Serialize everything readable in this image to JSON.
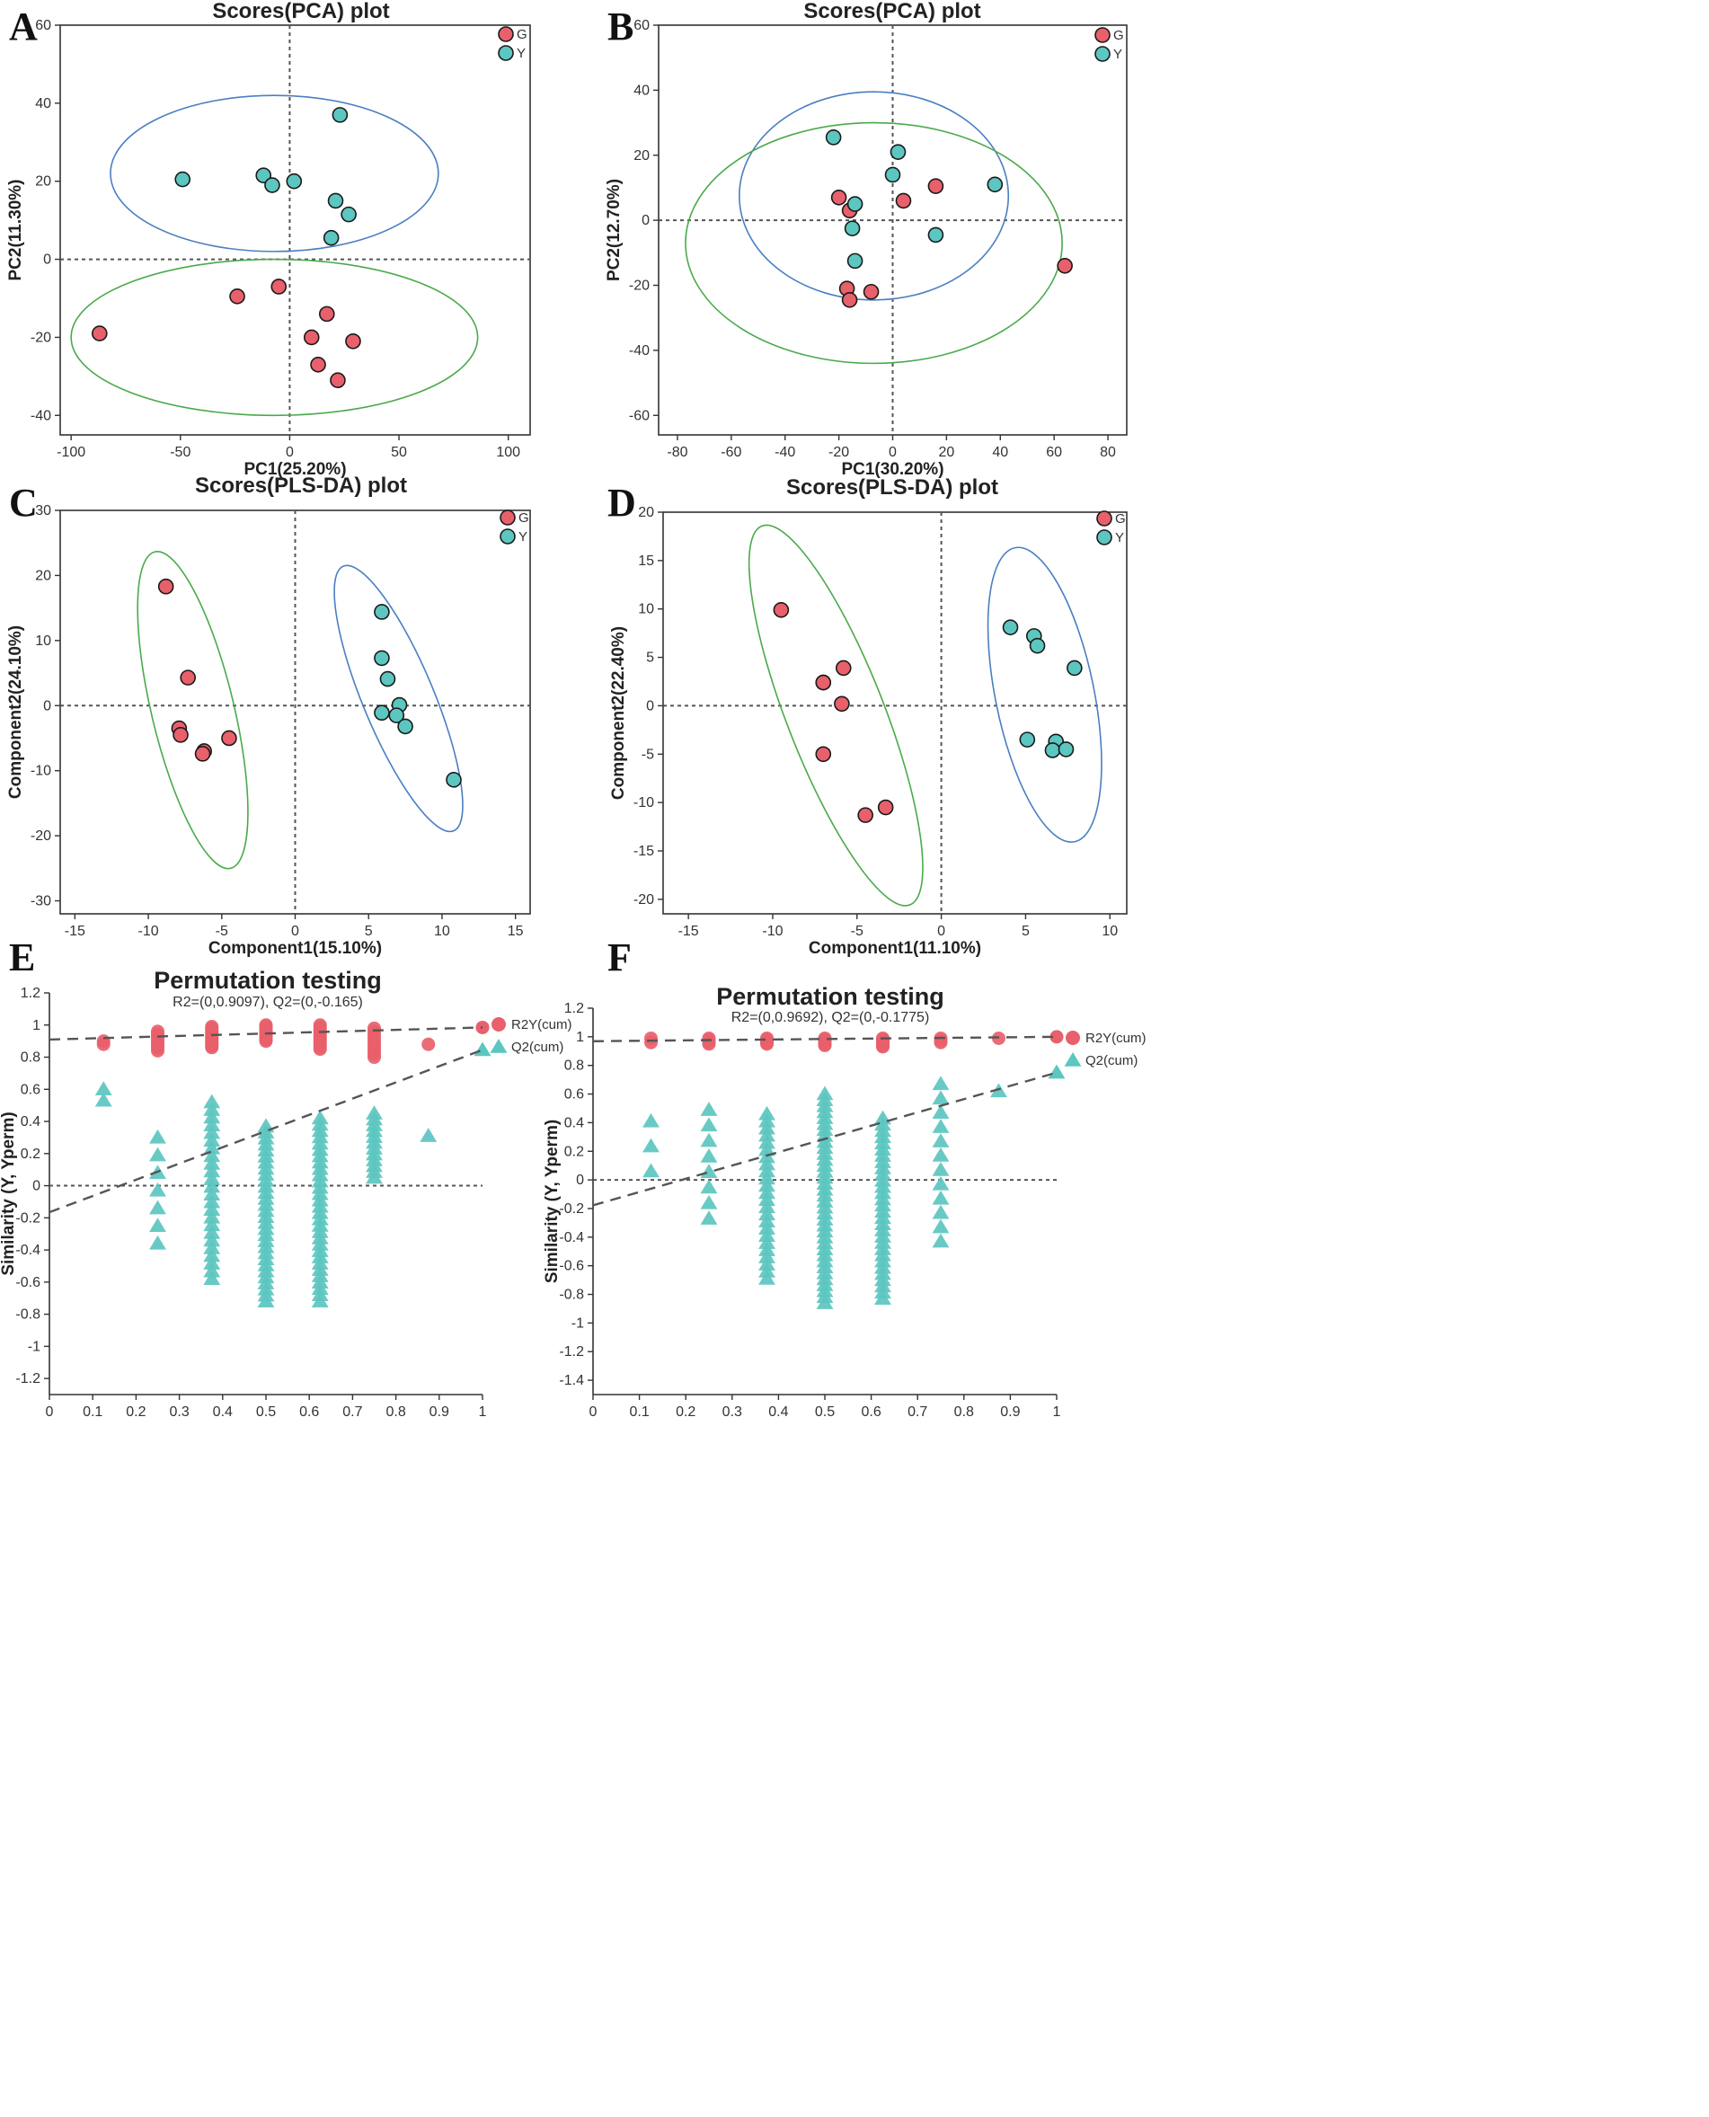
{
  "colors": {
    "G": "#e8606b",
    "Y": "#5cc6c0",
    "ellipse_blue": "#4a7fc1",
    "ellipse_green": "#4aaa4a",
    "r2y": "#e8606b",
    "q2": "#5cc6c0"
  },
  "chart_data": [
    {
      "label": "A",
      "type": "scatter",
      "title": "Scores(PCA) plot",
      "xlabel": "PC1(25.20%)",
      "ylabel": "PC2(11.30%)",
      "xlim": [
        -105,
        110
      ],
      "ylim": [
        -45,
        60
      ],
      "xticks": [
        -100,
        -50,
        0,
        50,
        100
      ],
      "yticks": [
        -40,
        -20,
        0,
        20,
        40,
        60
      ],
      "legend": [
        "G",
        "Y"
      ],
      "series": [
        {
          "name": "G",
          "points": [
            [
              -87,
              -19
            ],
            [
              -24,
              -9.5
            ],
            [
              -5,
              -7
            ],
            [
              17,
              -14
            ],
            [
              10,
              -20
            ],
            [
              13,
              -27
            ],
            [
              29,
              -21
            ],
            [
              22,
              -31
            ]
          ]
        },
        {
          "name": "Y",
          "points": [
            [
              -49,
              20.5
            ],
            [
              -12,
              21.5
            ],
            [
              -8,
              19
            ],
            [
              2,
              20
            ],
            [
              23,
              37
            ],
            [
              21,
              15
            ],
            [
              27,
              11.5
            ],
            [
              19,
              5.5
            ]
          ]
        }
      ],
      "ellipses": [
        {
          "group": "Y",
          "center": [
            -7,
            22
          ],
          "rx": 75,
          "ry": 20,
          "rotation_deg": 0
        },
        {
          "group": "G",
          "center": [
            -7,
            -20
          ],
          "rx": 93,
          "ry": 20,
          "rotation_deg": 0
        }
      ]
    },
    {
      "label": "B",
      "type": "scatter",
      "title": "Scores(PCA) plot",
      "xlabel": "PC1(30.20%)",
      "ylabel": "PC2(12.70%)",
      "xlim": [
        -87,
        87
      ],
      "ylim": [
        -66,
        60
      ],
      "xticks": [
        -80,
        -60,
        -40,
        -20,
        0,
        20,
        40,
        60,
        80
      ],
      "yticks": [
        -60,
        -40,
        -20,
        0,
        20,
        40,
        60
      ],
      "legend": [
        "G",
        "Y"
      ],
      "series": [
        {
          "name": "G",
          "points": [
            [
              -20,
              7
            ],
            [
              -16,
              3
            ],
            [
              4,
              6
            ],
            [
              16,
              10.5
            ],
            [
              -17,
              -21
            ],
            [
              -16,
              -24.5
            ],
            [
              -8,
              -22
            ],
            [
              64,
              -14
            ]
          ]
        },
        {
          "name": "Y",
          "points": [
            [
              -22,
              25.5
            ],
            [
              2,
              21
            ],
            [
              0,
              14
            ],
            [
              38,
              11
            ],
            [
              -14,
              5
            ],
            [
              -15,
              -2.5
            ],
            [
              -14,
              -12.5
            ],
            [
              16,
              -4.5
            ]
          ]
        }
      ],
      "ellipses": [
        {
          "group": "Y",
          "center": [
            -7,
            7.5
          ],
          "rx": 50,
          "ry": 32,
          "rotation_deg": 0
        },
        {
          "group": "G",
          "center": [
            -7,
            -7
          ],
          "rx": 70,
          "ry": 37,
          "rotation_deg": 0
        }
      ]
    },
    {
      "label": "C",
      "type": "scatter",
      "title": "Scores(PLS-DA) plot",
      "xlabel": "Component1(15.10%)",
      "ylabel": "Component2(24.10%)",
      "xlim": [
        -16,
        16
      ],
      "ylim": [
        -32,
        30
      ],
      "xticks": [
        -15,
        -10,
        -5,
        0,
        5,
        10,
        15
      ],
      "yticks": [
        -30,
        -20,
        -10,
        0,
        10,
        20,
        30
      ],
      "legend": [
        "G",
        "Y"
      ],
      "series": [
        {
          "name": "G",
          "points": [
            [
              -8.8,
              18.3
            ],
            [
              -7.3,
              4.3
            ],
            [
              -7.9,
              -3.5
            ],
            [
              -7.8,
              -4.5
            ],
            [
              -6.2,
              -7
            ],
            [
              -6.3,
              -7.4
            ],
            [
              -4.5,
              -5
            ]
          ]
        },
        {
          "name": "Y",
          "points": [
            [
              5.9,
              14.4
            ],
            [
              5.9,
              7.3
            ],
            [
              6.3,
              4.1
            ],
            [
              7.1,
              0.1
            ],
            [
              5.9,
              -1.1
            ],
            [
              6.9,
              -1.5
            ],
            [
              7.5,
              -3.2
            ],
            [
              10.8,
              -11.4
            ]
          ]
        }
      ]
    },
    {
      "label": "D",
      "type": "scatter",
      "title": "Scores(PLS-DA) plot",
      "xlabel": "Component1(11.10%)",
      "ylabel": "Component2(22.40%)",
      "xlim": [
        -16.5,
        11
      ],
      "ylim": [
        -21.5,
        20
      ],
      "xticks": [
        -15,
        -10,
        -5,
        0,
        5,
        10
      ],
      "yticks": [
        -20,
        -15,
        -10,
        -5,
        0,
        5,
        10,
        15,
        20
      ],
      "legend": [
        "G",
        "Y"
      ],
      "series": [
        {
          "name": "G",
          "points": [
            [
              -9.5,
              9.9
            ],
            [
              -7,
              2.4
            ],
            [
              -7,
              2.4
            ],
            [
              -5.8,
              3.9
            ],
            [
              -5.9,
              0.2
            ],
            [
              -7,
              -5
            ],
            [
              -4.5,
              -11.3
            ],
            [
              -3.3,
              -10.5
            ]
          ]
        },
        {
          "name": "Y",
          "points": [
            [
              4.1,
              8.1
            ],
            [
              5.5,
              7.2
            ],
            [
              5.7,
              6.2
            ],
            [
              7.9,
              3.9
            ],
            [
              5.1,
              -3.5
            ],
            [
              6.8,
              -3.7
            ],
            [
              6.6,
              -4.6
            ],
            [
              7.4,
              -4.5
            ]
          ]
        }
      ]
    },
    {
      "label": "E",
      "type": "scatter",
      "title": "Permutation testing",
      "subtitle": "R2=(0,0.9097), Q2=(0,-0.165)",
      "xlabel": "",
      "ylabel": "Similarity (Y, Yperm)",
      "xlim": [
        0,
        1
      ],
      "ylim": [
        -1.3,
        1.2
      ],
      "xticks": [
        0,
        0.1,
        0.2,
        0.3,
        0.4,
        0.5,
        0.6,
        0.7,
        0.8,
        0.9,
        1
      ],
      "yticks": [
        1.2,
        1,
        0.8,
        0.6,
        0.4,
        0.2,
        0,
        -0.2,
        -0.4,
        -0.6,
        -0.8,
        -1,
        -1.2
      ],
      "legend": [
        "R2Y(cum)",
        "Q2(cum)"
      ],
      "r2y_intercept": [
        0,
        0.9097
      ],
      "q2_intercept": [
        0,
        -0.165
      ],
      "r2y_actual": 0.985,
      "q2_actual": 0.845,
      "r2y_groups": [
        {
          "x": 0.125,
          "ymin": 0.88,
          "ymax": 0.9,
          "n": 2
        },
        {
          "x": 0.25,
          "ymin": 0.84,
          "ymax": 0.96,
          "n": 8
        },
        {
          "x": 0.375,
          "ymin": 0.86,
          "ymax": 0.99,
          "n": 12
        },
        {
          "x": 0.5,
          "ymin": 0.9,
          "ymax": 1.0,
          "n": 12
        },
        {
          "x": 0.625,
          "ymin": 0.85,
          "ymax": 1.0,
          "n": 12
        },
        {
          "x": 0.75,
          "ymin": 0.8,
          "ymax": 0.98,
          "n": 10
        },
        {
          "x": 0.875,
          "ymin": 0.88,
          "ymax": 0.88,
          "n": 1
        }
      ],
      "q2_groups": [
        {
          "x": 0.125,
          "ymin": 0.53,
          "ymax": 0.6,
          "n": 2
        },
        {
          "x": 0.25,
          "ymin": -0.36,
          "ymax": 0.3,
          "n": 7
        },
        {
          "x": 0.375,
          "ymin": -0.58,
          "ymax": 0.52,
          "n": 24
        },
        {
          "x": 0.5,
          "ymin": -0.72,
          "ymax": 0.37,
          "n": 30
        },
        {
          "x": 0.625,
          "ymin": -0.72,
          "ymax": 0.42,
          "n": 30
        },
        {
          "x": 0.75,
          "ymin": 0.05,
          "ymax": 0.45,
          "n": 12
        },
        {
          "x": 0.875,
          "ymin": 0.31,
          "ymax": 0.31,
          "n": 1
        }
      ]
    },
    {
      "label": "F",
      "type": "scatter",
      "title": "Permutation testing",
      "subtitle": "R2=(0,0.9692), Q2=(0,-0.1775)",
      "xlabel": "",
      "ylabel": "Similarity (Y, Yperm)",
      "xlim": [
        0,
        1
      ],
      "ylim": [
        -1.5,
        1.2
      ],
      "xticks": [
        0,
        0.1,
        0.2,
        0.3,
        0.4,
        0.5,
        0.6,
        0.7,
        0.8,
        0.9,
        1
      ],
      "yticks": [
        1.2,
        1,
        0.8,
        0.6,
        0.4,
        0.2,
        0,
        -0.2,
        -0.4,
        -0.6,
        -0.8,
        -1,
        -1.2,
        -1.4
      ],
      "legend": [
        "R2Y(cum)",
        "Q2(cum)"
      ],
      "r2y_intercept": [
        0,
        0.9692
      ],
      "q2_intercept": [
        0,
        -0.1775
      ],
      "r2y_actual": 1.0,
      "q2_actual": 0.75,
      "r2y_groups": [
        {
          "x": 0.125,
          "ymin": 0.96,
          "ymax": 0.99,
          "n": 2
        },
        {
          "x": 0.25,
          "ymin": 0.95,
          "ymax": 0.99,
          "n": 4
        },
        {
          "x": 0.375,
          "ymin": 0.95,
          "ymax": 0.99,
          "n": 5
        },
        {
          "x": 0.5,
          "ymin": 0.94,
          "ymax": 0.99,
          "n": 8
        },
        {
          "x": 0.625,
          "ymin": 0.93,
          "ymax": 0.99,
          "n": 8
        },
        {
          "x": 0.75,
          "ymin": 0.96,
          "ymax": 0.99,
          "n": 3
        },
        {
          "x": 0.875,
          "ymin": 0.99,
          "ymax": 0.99,
          "n": 1
        }
      ],
      "q2_groups": [
        {
          "x": 0.125,
          "ymin": 0.06,
          "ymax": 0.41,
          "n": 3
        },
        {
          "x": 0.25,
          "ymin": -0.27,
          "ymax": 0.49,
          "n": 8
        },
        {
          "x": 0.375,
          "ymin": -0.69,
          "ymax": 0.46,
          "n": 24
        },
        {
          "x": 0.5,
          "ymin": -0.86,
          "ymax": 0.6,
          "n": 36
        },
        {
          "x": 0.625,
          "ymin": -0.83,
          "ymax": 0.43,
          "n": 30
        },
        {
          "x": 0.75,
          "ymin": -0.43,
          "ymax": 0.67,
          "n": 12
        },
        {
          "x": 0.875,
          "ymin": 0.62,
          "ymax": 0.62,
          "n": 1
        }
      ]
    }
  ]
}
